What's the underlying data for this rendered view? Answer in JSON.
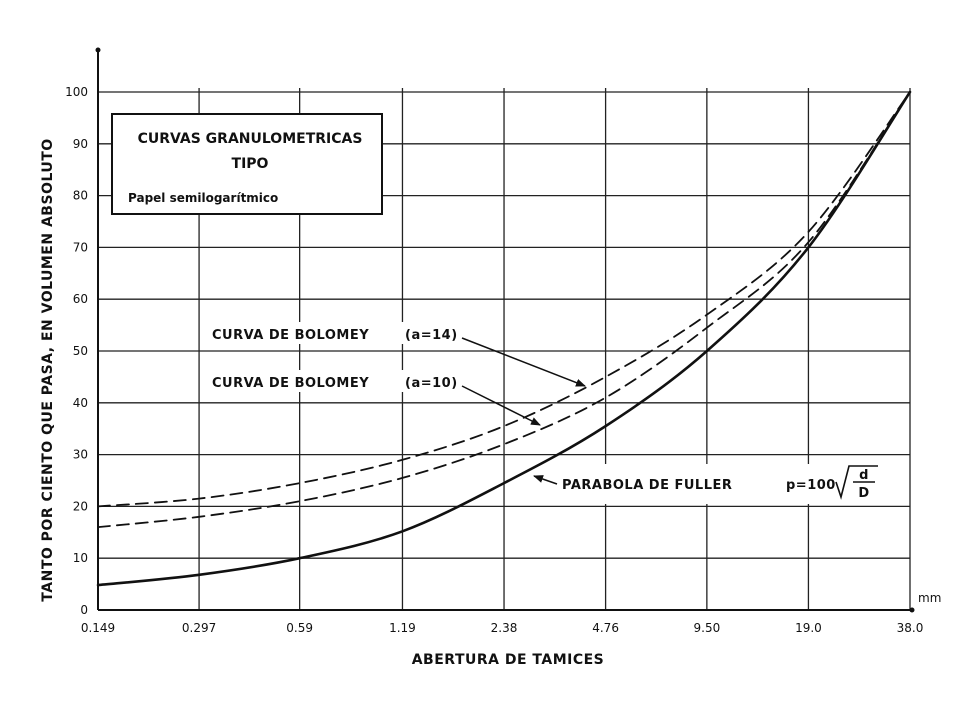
{
  "chart_data": {
    "type": "line",
    "xscale": "log2",
    "x_categories": [
      "0.149",
      "0.297",
      "0.59",
      "1.19",
      "2.38",
      "4.76",
      "9.50",
      "19.0",
      "38.0"
    ],
    "x_unit": "mm",
    "xlabel": "ABERTURA DE TAMICES",
    "ylabel": "TANTO POR CIENTO QUE PASA, EN VOLUMEN ABSOLUTO",
    "ylim": [
      0,
      100
    ],
    "yticks": [
      0,
      10,
      20,
      30,
      40,
      50,
      60,
      70,
      80,
      90,
      100
    ],
    "grid": true,
    "series": [
      {
        "name": "CURVA DE BOLOMEY (a=14)",
        "style": "dashed",
        "x": [
          "0.149",
          "0.297",
          "0.59",
          "1.19",
          "2.38",
          "4.76",
          "9.50",
          "19.0",
          "38.0"
        ],
        "values": [
          20,
          21.5,
          24.5,
          29,
          35.5,
          45,
          57,
          73,
          100
        ]
      },
      {
        "name": "CURVA DE BOLOMEY (a=10)",
        "style": "dashed",
        "x": [
          "0.149",
          "0.297",
          "0.59",
          "1.19",
          "2.38",
          "4.76",
          "9.50",
          "19.0",
          "38.0"
        ],
        "values": [
          16,
          18,
          21,
          25.5,
          32,
          41,
          54.5,
          71,
          100
        ]
      },
      {
        "name": "PARABOLA DE FULLER",
        "style": "solid",
        "x": [
          "0.149",
          "0.297",
          "0.59",
          "1.19",
          "2.38",
          "4.76",
          "9.50",
          "19.0",
          "38.0"
        ],
        "values": [
          4.8,
          6.8,
          10,
          15.2,
          24.5,
          35.5,
          50,
          70,
          100
        ]
      }
    ],
    "annotations": {
      "box_title_1": "CURVAS GRANULOMETRICAS",
      "box_title_2": "TIPO",
      "box_subtitle": "Papel semilogarítmico",
      "bolomey14_label": "CURVA DE BOLOMEY",
      "bolomey14_param": "(a=14)",
      "bolomey10_label": "CURVA DE BOLOMEY",
      "bolomey10_param": "(a=10)",
      "fuller_label": "PARABOLA DE FULLER",
      "fuller_formula_prefix": "p=100",
      "fuller_formula_num": "d",
      "fuller_formula_den": "D"
    }
  }
}
